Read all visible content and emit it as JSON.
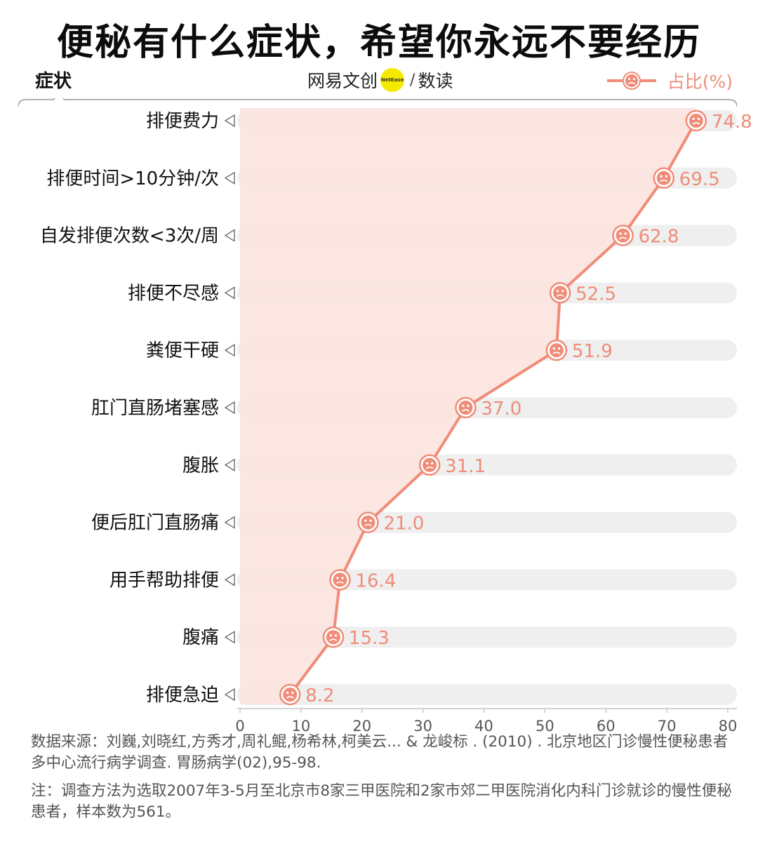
{
  "title": "便秘有什么症状，希望你永远不要经历",
  "brand": {
    "left": "网易文创",
    "circle": "NetEase",
    "right": "数读"
  },
  "legend": "占比(%)",
  "chart_data": {
    "type": "line",
    "ylabel": "症状",
    "categories": [
      "排便费力",
      "排便时间>10分钟/次",
      "自发排便次数<3次/周",
      "排便不尽感",
      "粪便干硬",
      "肛门直肠堵塞感",
      "腹胀",
      "便后肛门直肠痛",
      "用手帮助排便",
      "腹痛",
      "排便急迫"
    ],
    "series": [
      {
        "name": "占比(%)",
        "values": [
          74.8,
          69.5,
          62.8,
          52.5,
          51.9,
          37.0,
          31.1,
          21.0,
          16.4,
          15.3,
          8.2
        ]
      }
    ],
    "xlim": [
      0,
      80
    ],
    "xticks": [
      0,
      10,
      20,
      30,
      40,
      50,
      60,
      70,
      80
    ],
    "orientation": "horizontal",
    "colors": {
      "line": "#f08c78",
      "area": "#fbe3df",
      "track": "#efefef"
    }
  },
  "footer": {
    "source": "数据来源：刘巍,刘晓红,方秀才,周礼鲲,杨希林,柯美云... & 龙峻标 . (2010) . 北京地区门诊慢性便秘患者多中心流行病学调查. 胃肠病学(02),95-98.",
    "note": "注：调查方法为选取2007年3-5月至北京市8家三甲医院和2家市郊二甲医院消化内科门诊就诊的慢性便秘患者，样本数为561。"
  }
}
